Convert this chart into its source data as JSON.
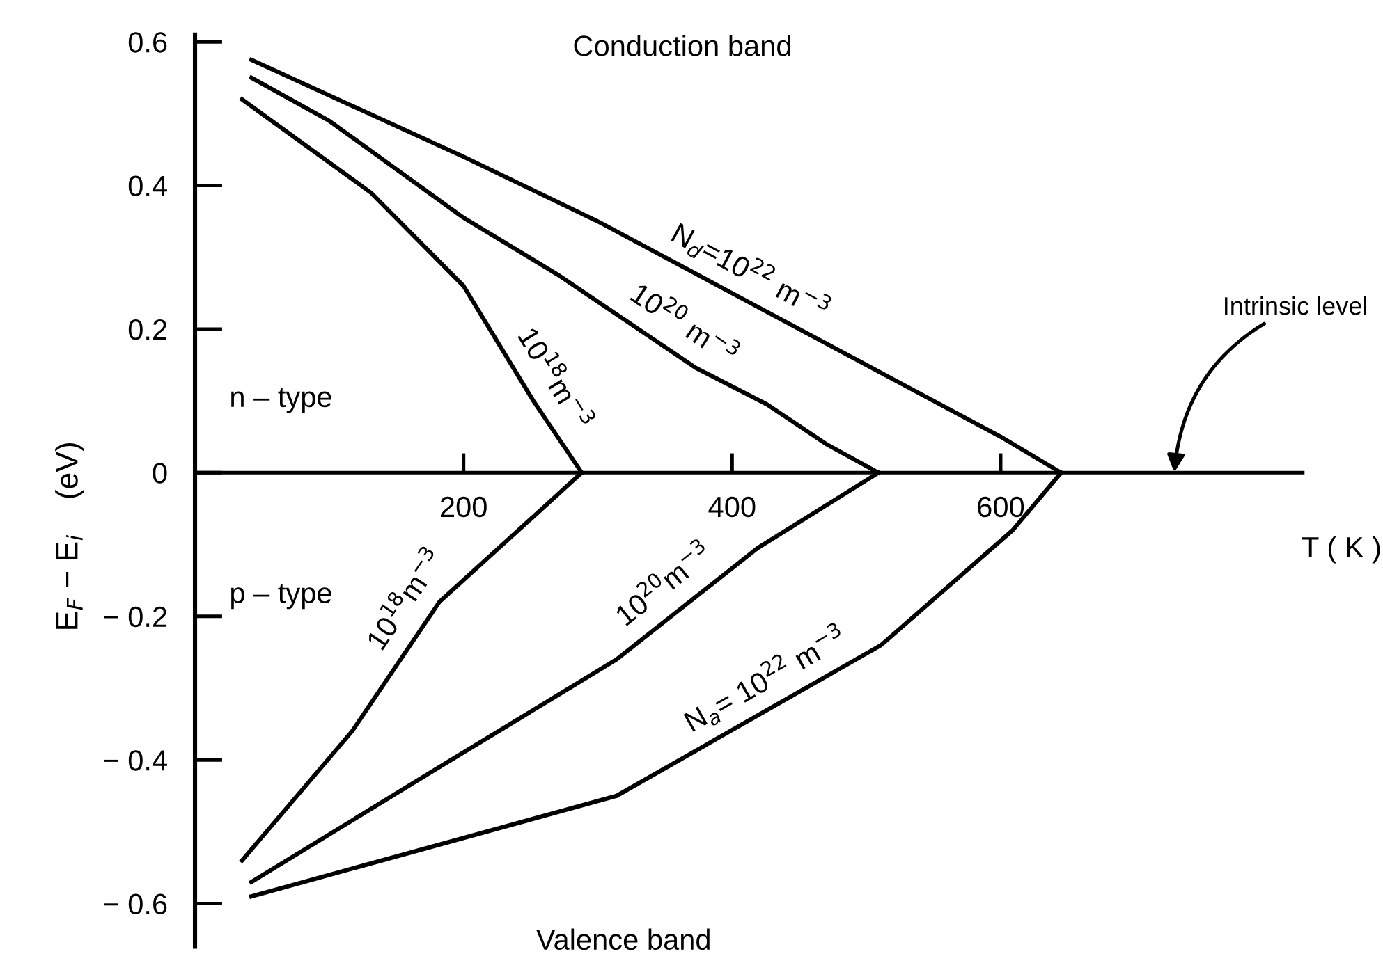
{
  "chart_data": {
    "type": "line",
    "xlabel": "T ( K )",
    "ylabel": "E$_{F}$ − E$_{i}$    (eV)",
    "xlim": [
      0,
      825
    ],
    "ylim": [
      -0.66,
      0.61
    ],
    "xticks": [
      200,
      400,
      600
    ],
    "yticks": [
      0.6,
      0.4,
      0.2,
      0,
      {
        "value": -0.2,
        "label": "− 0.2"
      },
      {
        "value": -0.4,
        "label": "− 0.4"
      },
      {
        "value": -0.6,
        "label": "− 0.6"
      }
    ],
    "grid": false,
    "legend": false,
    "marker": "none",
    "line_style": "solid",
    "series": [
      {
        "name": "N$_{d}$=10$^{22}$ m$^{−3}$",
        "color": "#000000",
        "x": [
          42,
          200,
          300,
          400,
          500,
          600,
          645
        ],
        "values": [
          0.575,
          0.44,
          0.35,
          0.25,
          0.15,
          0.05,
          0
        ]
      },
      {
        "name": "10$^{20}$ m$^{−3}$",
        "color": "#000000",
        "x": [
          42,
          100,
          200,
          270,
          373,
          426,
          470,
          509
        ],
        "values": [
          0.55,
          0.49,
          0.355,
          0.276,
          0.146,
          0.095,
          0.04,
          0
        ]
      },
      {
        "name": "10$^{18}$m$^{−3}$",
        "color": "#000000",
        "x": [
          35,
          131,
          200,
          252,
          288
        ],
        "values": [
          0.52,
          0.39,
          0.26,
          0.1,
          0
        ]
      },
      {
        "name": "10$^{18}$m$^{−3}$",
        "color": "#000000",
        "x": [
          35,
          117,
          182,
          288
        ],
        "values": [
          -0.54,
          -0.36,
          -0.18,
          0
        ]
      },
      {
        "name": "10$^{20}$m$^{−3}$",
        "color": "#000000",
        "x": [
          42,
          182,
          314,
          419,
          509
        ],
        "values": [
          -0.57,
          -0.41,
          -0.26,
          -0.105,
          0
        ]
      },
      {
        "name": "N$_{a}$= 10$^{22}$ m$^{−3}$",
        "color": "#000000",
        "x": [
          42,
          314,
          511,
          609,
          645
        ],
        "values": [
          -0.59,
          -0.45,
          -0.24,
          -0.08,
          0
        ]
      }
    ],
    "annotations": [
      "Conduction band",
      "Valence band",
      "n – type",
      "p – type",
      "Intrinsic level"
    ]
  }
}
